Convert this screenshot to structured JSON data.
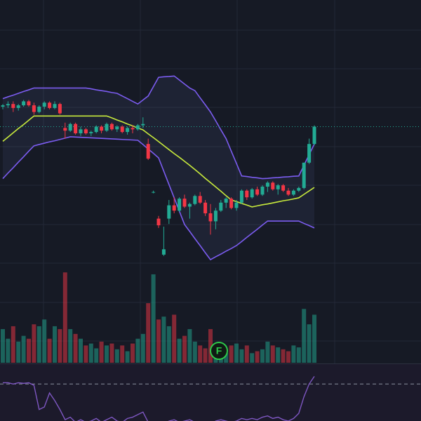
{
  "chart_data": {
    "type": "candlestick",
    "ylim": [
      0,
      100
    ],
    "open": [
      60,
      60.5,
      61,
      59.5,
      60.5,
      62,
      60.5,
      58,
      60,
      61.5,
      59.5,
      61,
      52,
      51,
      53.5,
      50,
      51.5,
      50,
      50.5,
      52.5,
      51,
      53.5,
      51.5,
      52.5,
      50.5,
      52,
      51.5,
      53,
      46,
      28,
      18,
      4.5,
      18,
      23,
      21,
      25.5,
      22.5,
      23.5,
      26.5,
      24,
      20,
      17,
      21,
      24,
      25.5,
      22,
      24,
      28.5,
      26,
      29,
      27,
      30,
      31.5,
      29,
      30.5,
      28.5,
      27,
      28.5,
      29.5,
      39,
      46
    ],
    "high": [
      61,
      62,
      62,
      61,
      62.5,
      62.5,
      61.5,
      60.5,
      62,
      62,
      62,
      61.5,
      54,
      54,
      54,
      52.5,
      52,
      51,
      53,
      53,
      54,
      54,
      53,
      53,
      52.5,
      53,
      53.5,
      56,
      48,
      28.5,
      19,
      15,
      25,
      26,
      26,
      27,
      24,
      27,
      28,
      25,
      23.5,
      22,
      25,
      26,
      26,
      25,
      29,
      29,
      29.5,
      30,
      30.5,
      32,
      32,
      31,
      31,
      29.5,
      29,
      30,
      39,
      48,
      53
    ],
    "low": [
      59,
      59.5,
      58,
      58.5,
      60,
      60,
      57,
      57.5,
      59,
      59,
      59,
      57,
      48,
      50.5,
      49.5,
      49,
      49.5,
      49,
      50,
      50,
      50.5,
      51,
      50.5,
      50,
      49.5,
      50,
      51,
      52,
      40,
      27.5,
      14.5,
      4,
      16,
      20,
      20.5,
      22,
      18,
      23,
      23.5,
      19,
      12,
      14,
      20.5,
      22,
      21.5,
      21,
      23.5,
      25,
      25.5,
      26.5,
      26.5,
      28,
      28.5,
      27,
      28,
      26.5,
      26.5,
      28,
      29,
      38.5,
      45.5
    ],
    "close": [
      60.5,
      61,
      59.5,
      60.5,
      62,
      60.5,
      58,
      60,
      61.5,
      59.5,
      61,
      57.5,
      51,
      53.5,
      50,
      51.5,
      50,
      50.5,
      52.5,
      51,
      53.5,
      51.5,
      52.5,
      50.5,
      52,
      51.5,
      53,
      53.5,
      40.5,
      28,
      15.5,
      6.5,
      23,
      21,
      25.5,
      22.5,
      23.5,
      26.5,
      24,
      20,
      17,
      21,
      24,
      25.5,
      22,
      24,
      28.5,
      26,
      29,
      27,
      30,
      31.5,
      29,
      30.5,
      28.5,
      27,
      28.5,
      29.5,
      39,
      46,
      52.5
    ],
    "volume_ylim": [
      0,
      100
    ],
    "volume": [
      35,
      25,
      38,
      22,
      28,
      25,
      40,
      38,
      45,
      25,
      38,
      35,
      94,
      35,
      30,
      25,
      18,
      20,
      15,
      22,
      18,
      20,
      14,
      18,
      12,
      20,
      25,
      30,
      62,
      92,
      45,
      48,
      38,
      50,
      25,
      28,
      35,
      22,
      18,
      15,
      35,
      15,
      12,
      10,
      18,
      20,
      14,
      18,
      10,
      12,
      14,
      22,
      18,
      16,
      14,
      12,
      18,
      16,
      56,
      40,
      50
    ],
    "up_color": "#22ab94",
    "down_color": "#f23645",
    "bands": {
      "color": "#7b5cf0",
      "basis_color": "#c8ea3c",
      "upper": {
        "values": [
          63,
          63.7,
          64.3,
          65,
          65.7,
          66.3,
          67,
          67,
          67,
          67,
          67,
          67,
          67,
          67,
          67,
          67,
          67,
          66.7,
          66.3,
          66,
          65.7,
          65.3,
          65,
          64,
          63,
          62,
          61,
          62.5,
          64,
          67.5,
          71,
          71.2,
          71.3,
          71.5,
          70,
          68.5,
          67,
          66,
          63.3,
          60.7,
          58,
          54.7,
          51.3,
          48,
          43.3,
          38.7,
          34,
          33.8,
          33.5,
          33.3,
          33,
          33.1,
          33.3,
          33.4,
          33.6,
          33.7,
          33.9,
          34,
          38,
          42,
          46
        ]
      },
      "middle": {
        "values": [
          47,
          48.6,
          50.2,
          51.8,
          53.3,
          54.9,
          56.5,
          56.5,
          56.5,
          56.5,
          56.5,
          56.5,
          56.5,
          56.5,
          56.5,
          56.5,
          56.5,
          56.5,
          56.5,
          56.5,
          56.5,
          55.8,
          55,
          54.3,
          53.5,
          52.8,
          52,
          51.3,
          49.8,
          48.4,
          46.9,
          45.4,
          43.9,
          42.4,
          41,
          39.5,
          38,
          36.4,
          34.8,
          33.1,
          31.5,
          29.9,
          28.3,
          26.6,
          25,
          24.4,
          23.7,
          23.1,
          22.4,
          22.8,
          23.2,
          23.5,
          23.9,
          24.3,
          24.7,
          25,
          25.4,
          25.8,
          27.1,
          28.4,
          29.7
        ]
      },
      "lower": {
        "values": [
          33,
          35.1,
          37.1,
          39.2,
          41.2,
          43.3,
          45.3,
          45.8,
          46.3,
          46.8,
          47.2,
          47.7,
          48.2,
          48.7,
          48.6,
          48.5,
          48.4,
          48.3,
          48.2,
          48.1,
          48,
          47.9,
          47.8,
          47.7,
          47.6,
          47.5,
          47.4,
          45.8,
          44.1,
          42.5,
          40.8,
          35.8,
          30.8,
          25.8,
          20.8,
          15.8,
          13.2,
          10.5,
          7.9,
          5.2,
          2.6,
          3.7,
          4.7,
          5.8,
          6.8,
          7.9,
          9.4,
          11,
          12.5,
          14,
          15.6,
          17.1,
          17.1,
          17.1,
          17.1,
          17.1,
          17.1,
          17.1,
          16.2,
          15.4,
          14.5
        ]
      }
    },
    "rsi": {
      "color": "#7e57c2",
      "ylim": [
        30,
        85
      ],
      "yticks": [
        70
      ],
      "values": [
        71,
        71,
        70,
        71,
        70.5,
        71,
        69,
        50,
        52,
        63,
        57,
        50,
        42,
        44,
        40,
        42,
        40,
        41,
        43,
        40,
        42,
        44,
        41,
        40,
        43,
        44,
        46,
        48,
        40,
        38,
        36,
        38,
        41,
        42,
        40,
        41,
        42,
        40,
        39,
        37,
        38,
        41,
        42,
        41,
        40,
        41,
        43,
        42,
        43,
        42,
        44,
        45,
        43,
        44,
        42,
        41,
        43,
        47,
        60,
        70,
        76
      ]
    },
    "event_marker": "F"
  }
}
